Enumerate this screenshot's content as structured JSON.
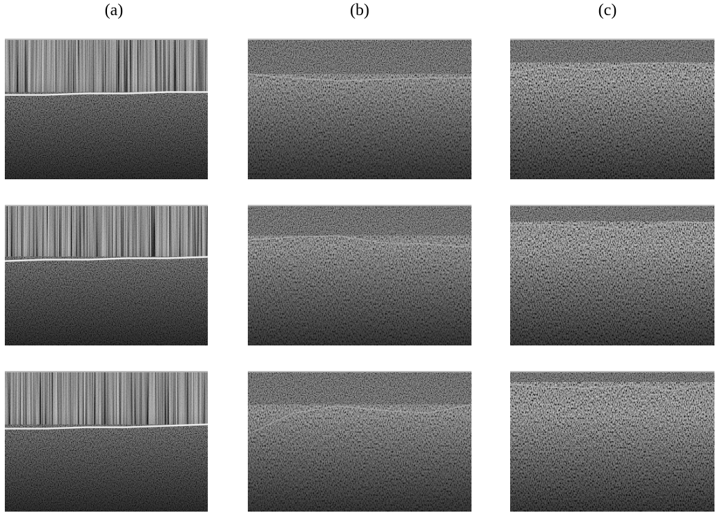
{
  "figure": {
    "columns": [
      "(a)",
      "(b)",
      "(c)"
    ]
  }
}
